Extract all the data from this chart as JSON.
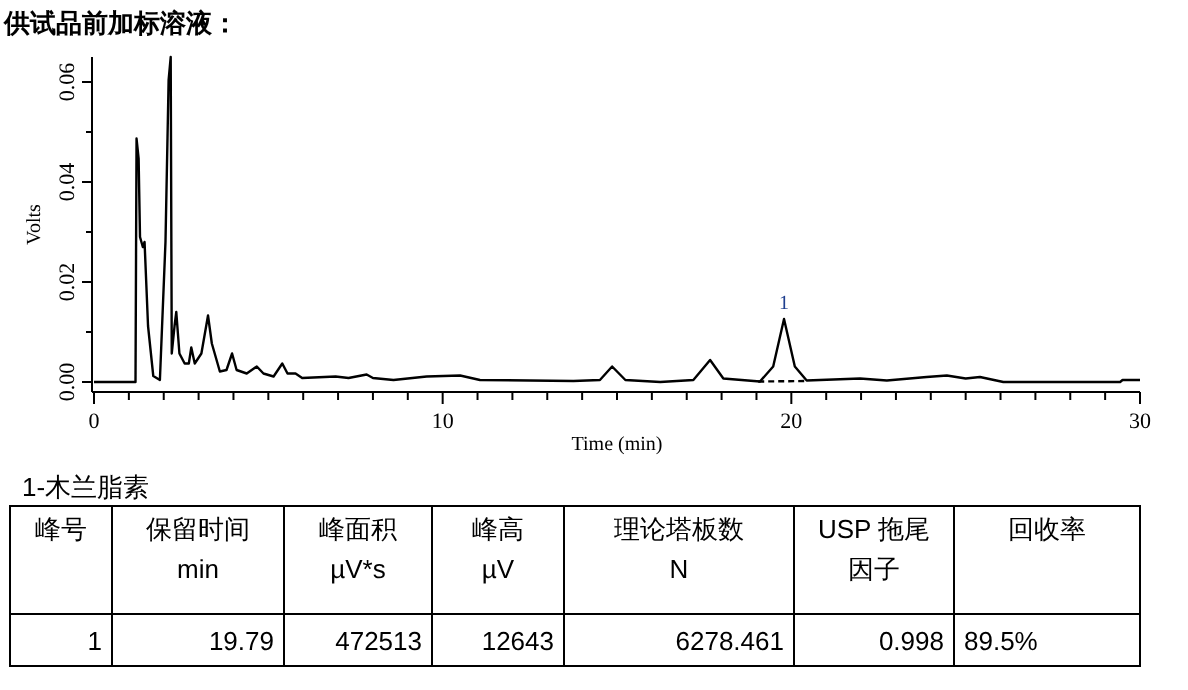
{
  "chart_data": {
    "type": "line",
    "title": "供试品前加标溶液：",
    "xlabel": "Time (min)",
    "ylabel": "Volts",
    "xlim": [
      0,
      30
    ],
    "ylim": [
      -0.002,
      0.065
    ],
    "xticks": [
      0,
      {
        "value": 1,
        "label": null
      },
      {
        "value": 2,
        "label": null
      },
      {
        "value": 3,
        "label": null
      },
      {
        "value": 4,
        "label": null
      },
      {
        "value": 5,
        "label": null
      },
      {
        "value": 6,
        "label": null
      },
      {
        "value": 7,
        "label": null
      },
      {
        "value": 8,
        "label": null
      },
      {
        "value": 9,
        "label": null
      },
      10,
      {
        "value": 11,
        "label": null
      },
      {
        "value": 12,
        "label": null
      },
      {
        "value": 13,
        "label": null
      },
      {
        "value": 14,
        "label": null
      },
      {
        "value": 15,
        "label": null
      },
      {
        "value": 16,
        "label": null
      },
      {
        "value": 17,
        "label": null
      },
      {
        "value": 18,
        "label": null
      },
      {
        "value": 19,
        "label": null
      },
      20,
      {
        "value": 21,
        "label": null
      },
      {
        "value": 22,
        "label": null
      },
      {
        "value": 23,
        "label": null
      },
      {
        "value": 24,
        "label": null
      },
      {
        "value": 25,
        "label": null
      },
      {
        "value": 26,
        "label": null
      },
      {
        "value": 27,
        "label": null
      },
      {
        "value": 28,
        "label": null
      },
      {
        "value": 29,
        "label": null
      },
      30
    ],
    "yticks": [
      {
        "value": 0,
        "label": "0.00"
      },
      {
        "value": 0.01,
        "label": null
      },
      {
        "value": 0.02,
        "label": "0.02"
      },
      {
        "value": 0.03,
        "label": null
      },
      {
        "value": 0.04,
        "label": "0.04"
      },
      {
        "value": 0.05,
        "label": null
      },
      {
        "value": 0.06,
        "label": "0.06"
      }
    ],
    "grid": false,
    "marker": "none",
    "series": [
      {
        "color": "#000000",
        "line_style": "solid",
        "x": [
          0,
          1.19,
          1.22,
          1.28,
          1.32,
          1.4,
          1.45,
          1.55,
          1.7,
          1.89,
          2.05,
          2.14,
          2.2,
          2.23,
          2.31,
          2.36,
          2.45,
          2.6,
          2.72,
          2.79,
          2.89,
          3.08,
          3.27,
          3.38,
          3.61,
          3.8,
          3.96,
          4.09,
          4.38,
          4.67,
          4.86,
          5.15,
          5.4,
          5.55,
          5.78,
          5.97,
          6.93,
          7.3,
          7.82,
          8.0,
          8.59,
          9.54,
          10.5,
          11.07,
          13.75,
          14.51,
          14.86,
          15.24,
          16.24,
          17.19,
          17.67,
          18.05,
          19.1,
          19.48,
          19.79,
          20.1,
          20.44,
          21.97,
          22.74,
          23.88,
          24.46,
          25.0,
          25.41,
          26.08,
          29.43,
          29.5,
          30
        ],
        "values": [
          0,
          0,
          0.0487,
          0.0447,
          0.029,
          0.027,
          0.028,
          0.0112,
          0.0012,
          0.0004,
          0.028,
          0.0604,
          0.065,
          0.0057,
          0.0112,
          0.014,
          0.0057,
          0.0037,
          0.0037,
          0.0069,
          0.0037,
          0.0057,
          0.0133,
          0.0077,
          0.0021,
          0.0024,
          0.0057,
          0.0024,
          0.0017,
          0.0031,
          0.0017,
          0.0011,
          0.0037,
          0.0017,
          0.0017,
          0.0008,
          0.0011,
          0.0008,
          0.0015,
          0.0008,
          0.0004,
          0.0011,
          0.0013,
          0.0004,
          0.0002,
          0.0004,
          0.0031,
          0.0004,
          0,
          0.0004,
          0.0044,
          0.0007,
          0.0001,
          0.0031,
          0.0126,
          0.0031,
          0.0003,
          0.0007,
          0.0003,
          0.001,
          0.0013,
          0.0007,
          0.001,
          0,
          0,
          0.0004,
          0.0004
        ]
      },
      {
        "color": "#000000",
        "line_style": "dashed",
        "x": [
          19.05,
          20.45
        ],
        "values": [
          0.0001,
          0.0002
        ]
      }
    ],
    "annotations": [
      {
        "text": "1",
        "x": 19.79,
        "y": 0.0126
      },
      "1-木兰脂素",
      "峰号",
      "保留时间",
      "峰面积",
      "峰高",
      "理论塔板数",
      "USP 拖尾",
      "回收率",
      "min",
      "µV*s",
      "µV",
      "N",
      "因子",
      "1",
      "19.79",
      "472513",
      "12643",
      "6278.461",
      "0.998",
      "89.5%"
    ]
  }
}
